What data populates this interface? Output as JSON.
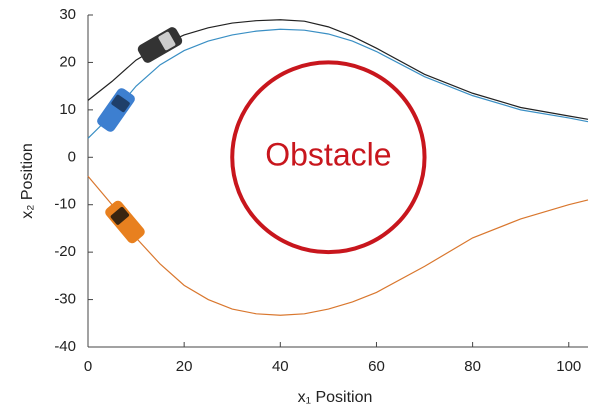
{
  "chart_data": {
    "type": "line",
    "x_label": "x₁ Position",
    "y_label": "x₂ Position",
    "x": [
      0,
      5,
      10,
      15,
      20,
      25,
      30,
      35,
      40,
      45,
      50,
      55,
      60,
      70,
      80,
      90,
      100,
      104
    ],
    "series": [
      {
        "color": "#222222",
        "values": [
          12,
          16,
          20.5,
          23.5,
          25.8,
          27.3,
          28.3,
          28.8,
          29,
          28.7,
          27.5,
          25.5,
          23,
          17.5,
          13.5,
          10.5,
          8.7,
          8
        ]
      },
      {
        "color": "#3a8fc4",
        "values": [
          4,
          9,
          15,
          19.5,
          22.5,
          24.5,
          25.8,
          26.6,
          27,
          26.8,
          26,
          24.5,
          22.3,
          17,
          13,
          10,
          8.3,
          7.5
        ]
      },
      {
        "color": "#d9772e",
        "values": [
          -4,
          -10,
          -17,
          -22.5,
          -27,
          -30,
          -32,
          -33,
          -33.3,
          -33,
          -32,
          -30.5,
          -28.5,
          -23,
          -17,
          -13,
          -10,
          -9
        ]
      }
    ],
    "obstacle": {
      "label": "Obstacle",
      "center": [
        50,
        0
      ],
      "radius": 20,
      "color": "#c8161d"
    },
    "xlim": [
      0,
      104
    ],
    "ylim": [
      -40,
      30
    ],
    "xticks": [
      0,
      20,
      40,
      60,
      80,
      100
    ],
    "yticks": [
      -40,
      -30,
      -20,
      -10,
      0,
      10,
      20,
      30
    ],
    "grid": false
  }
}
